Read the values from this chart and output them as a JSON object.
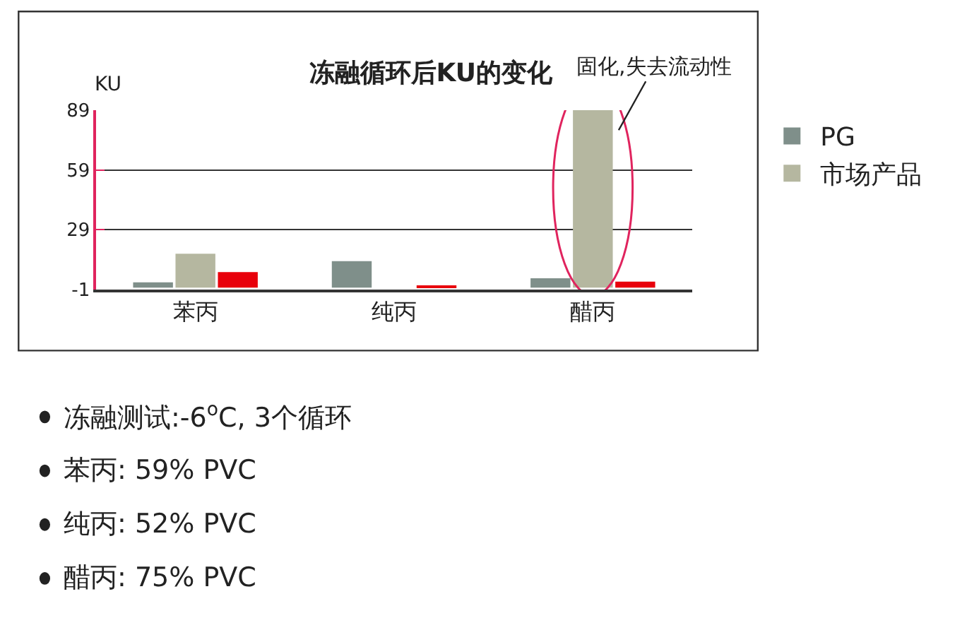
{
  "chart_data": {
    "type": "bar",
    "title": "冻融循环后KU的变化",
    "ylabel": "KU",
    "categories": [
      "苯丙",
      "纯丙",
      "醋丙"
    ],
    "series": [
      {
        "name": "PG",
        "color": "#7f8f8a",
        "values": [
          2.6,
          13.3,
          4.7
        ]
      },
      {
        "name": "市场产品",
        "color": "#b5b7a0",
        "values": [
          17,
          null,
          89
        ]
      },
      {
        "color": "#e8000b",
        "values": [
          7.8,
          0.7,
          3
        ]
      }
    ],
    "ylim": [
      -1,
      89
    ],
    "yticks": [
      -1,
      29,
      59,
      89
    ],
    "grid": "y",
    "legend": "right",
    "annotations": [
      {
        "text": "固化,失去流动性",
        "x": "醋丙",
        "y": 89
      },
      "冻融测试:-6$^{o}$C, 3个循环",
      "苯丙: 59% PVC",
      "纯丙: 52% PVC",
      "醋丙: 75% PVC"
    ]
  }
}
